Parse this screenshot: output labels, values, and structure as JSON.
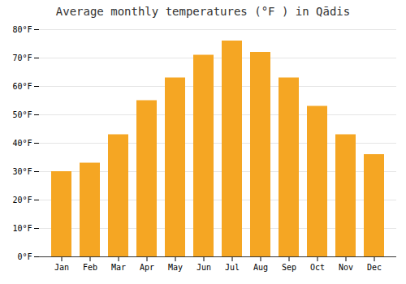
{
  "chart_data": {
    "type": "bar",
    "title": "Average monthly temperatures (°F ) in Qādis",
    "categories": [
      "Jan",
      "Feb",
      "Mar",
      "Apr",
      "May",
      "Jun",
      "Jul",
      "Aug",
      "Sep",
      "Oct",
      "Nov",
      "Dec"
    ],
    "values": [
      30,
      33,
      43,
      55,
      63,
      71,
      76,
      72,
      63,
      53,
      43,
      36
    ],
    "color": "#F5A623",
    "ylim": [
      0,
      80
    ],
    "yticks": [
      {
        "value": 0,
        "label": "0°F"
      },
      {
        "value": 10,
        "label": "10°F"
      },
      {
        "value": 20,
        "label": "20°F"
      },
      {
        "value": 30,
        "label": "30°F"
      },
      {
        "value": 40,
        "label": "40°F"
      },
      {
        "value": 50,
        "label": "50°F"
      },
      {
        "value": 60,
        "label": "60°F"
      },
      {
        "value": 70,
        "label": "70°F"
      },
      {
        "value": 80,
        "label": "80°F"
      }
    ],
    "grid": true
  }
}
